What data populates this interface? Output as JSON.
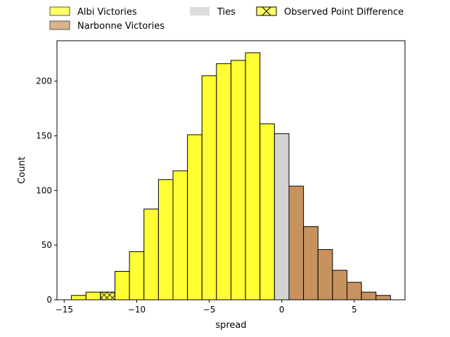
{
  "chart_data": {
    "type": "bar",
    "xlabel": "spread",
    "ylabel": "Count",
    "xlim": [
      -15.5,
      8.5
    ],
    "ylim": [
      0,
      237
    ],
    "xticks": [
      -15,
      -10,
      -5,
      0,
      5
    ],
    "xtick_labels": [
      "−15",
      "−10",
      "−5",
      "0",
      "5"
    ],
    "yticks": [
      0,
      50,
      100,
      150,
      200
    ],
    "ytick_labels": [
      "0",
      "50",
      "100",
      "150",
      "200"
    ],
    "bin_width": 1,
    "legend_position": "top, outside plot, 3 columns",
    "legend": [
      {
        "label": "Albi Victories",
        "color": "#ffff33",
        "hatch": false
      },
      {
        "label": "Narbonne Victories",
        "color": "#cc9966",
        "hatch": false
      },
      {
        "label": "Ties",
        "color": "#d3d3d3",
        "hatch": false
      },
      {
        "label": "Observed Point Difference",
        "color": "#ffff33",
        "hatch": true
      }
    ],
    "series": [
      {
        "name": "Albi Victories",
        "color": "#ffff33",
        "bins": [
          {
            "x": -14,
            "count": 4
          },
          {
            "x": -13,
            "count": 7
          },
          {
            "x": -12,
            "count": 7
          },
          {
            "x": -11,
            "count": 26
          },
          {
            "x": -10,
            "count": 44
          },
          {
            "x": -9,
            "count": 83
          },
          {
            "x": -8,
            "count": 110
          },
          {
            "x": -7,
            "count": 118
          },
          {
            "x": -6,
            "count": 151
          },
          {
            "x": -5,
            "count": 205
          },
          {
            "x": -4,
            "count": 216
          },
          {
            "x": -3,
            "count": 219
          },
          {
            "x": -2,
            "count": 226
          },
          {
            "x": -1,
            "count": 161
          }
        ]
      },
      {
        "name": "Ties",
        "color": "#d3d3d3",
        "bins": [
          {
            "x": 0,
            "count": 152
          }
        ]
      },
      {
        "name": "Narbonne Victories",
        "color": "#c8925f",
        "bins": [
          {
            "x": 1,
            "count": 104
          },
          {
            "x": 2,
            "count": 67
          },
          {
            "x": 3,
            "count": 46
          },
          {
            "x": 4,
            "count": 27
          },
          {
            "x": 5,
            "count": 16
          },
          {
            "x": 6,
            "count": 7
          },
          {
            "x": 7,
            "count": 4
          }
        ]
      }
    ],
    "observed_point_difference": {
      "x": -12,
      "count": 7
    }
  }
}
